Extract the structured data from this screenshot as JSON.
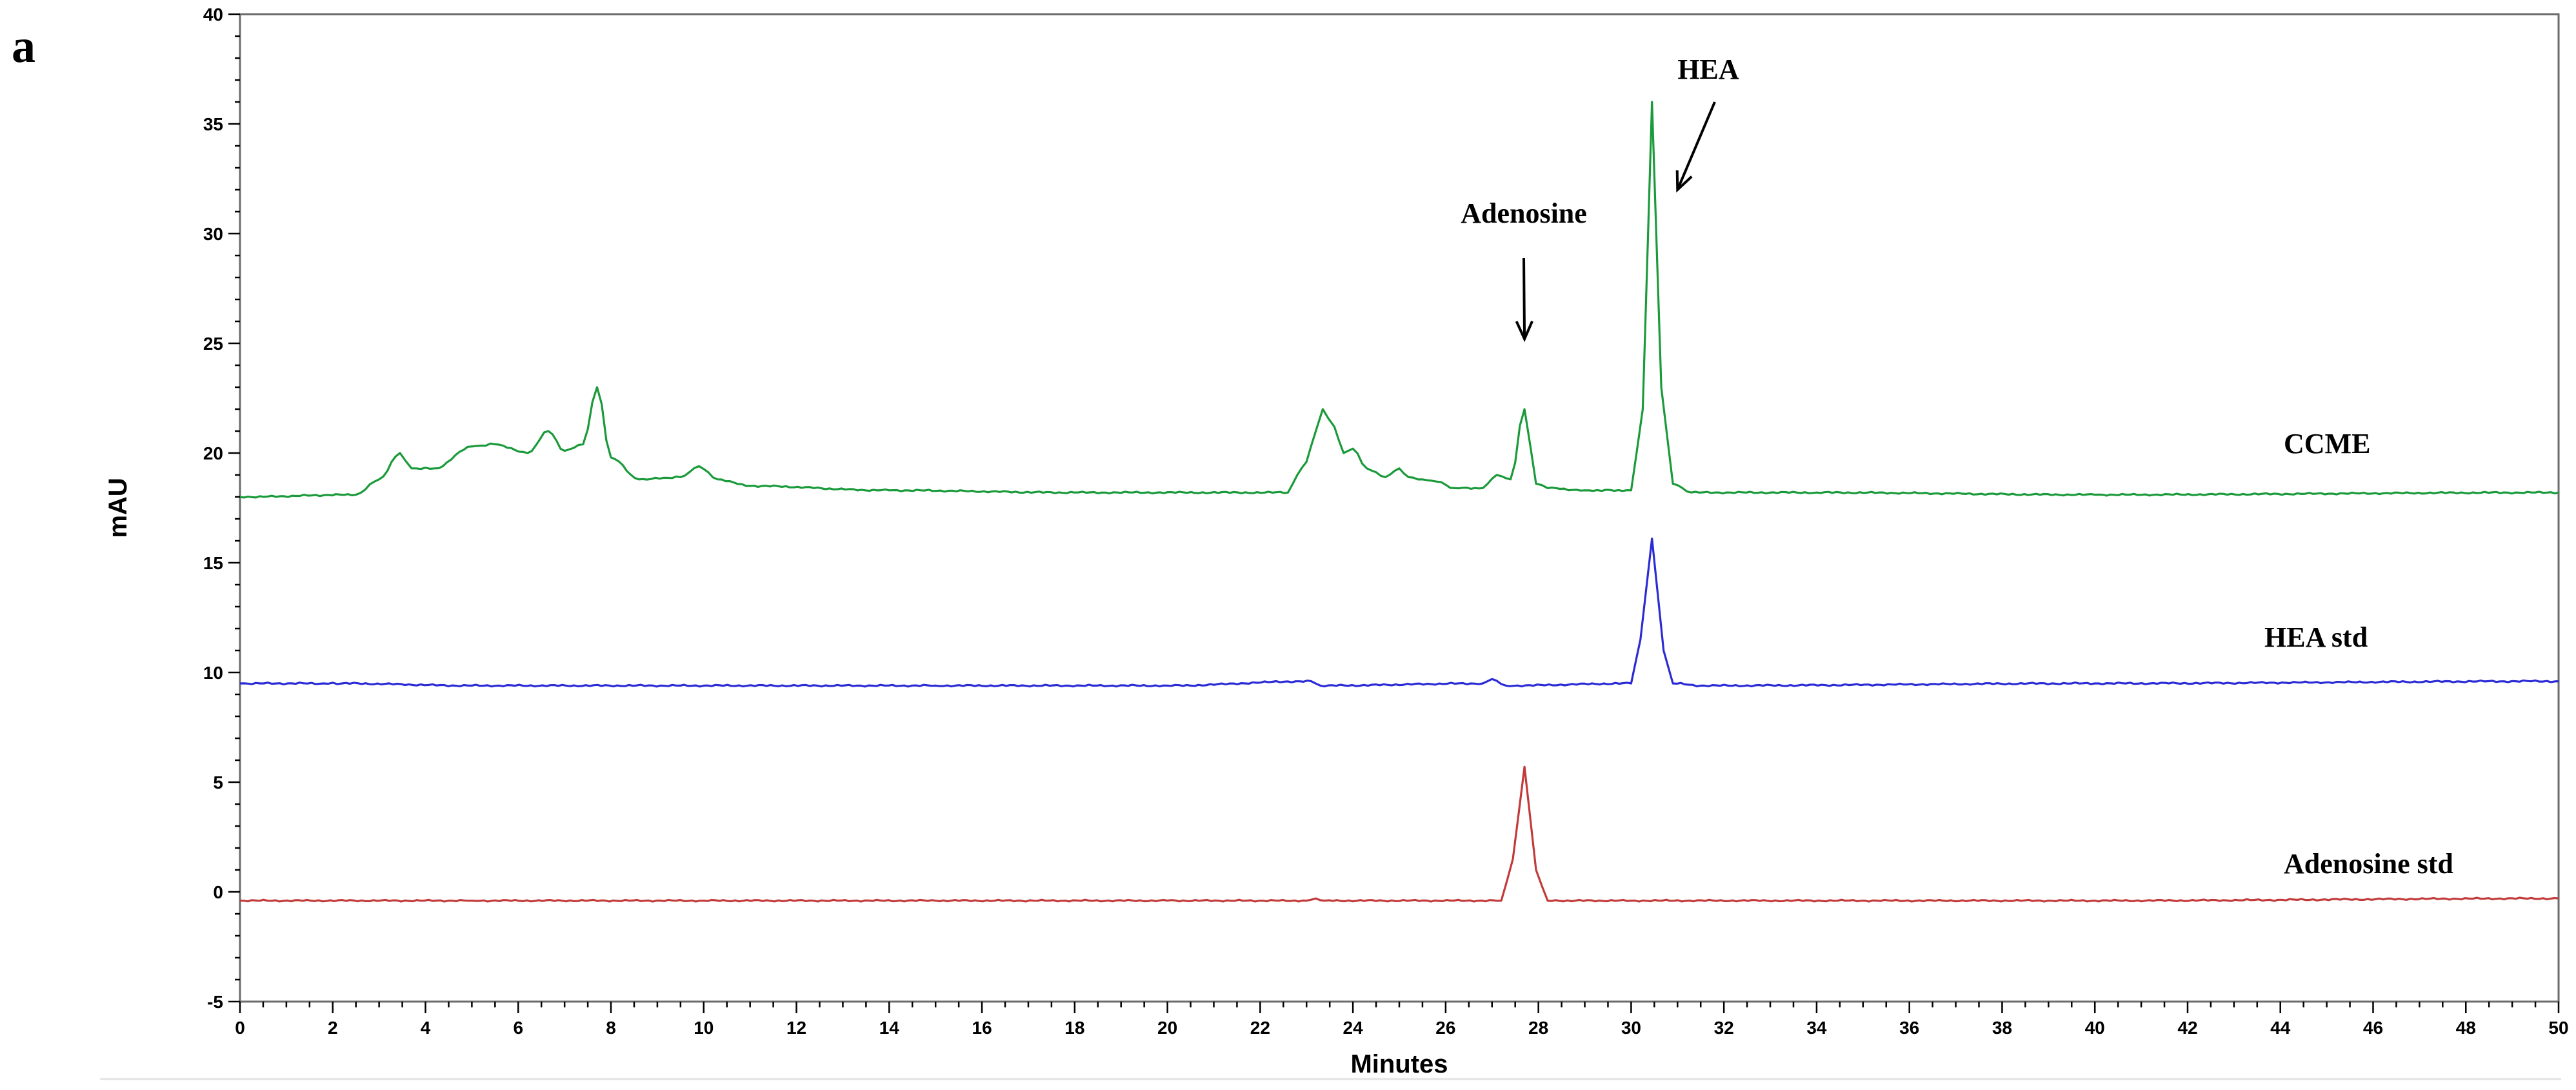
{
  "panel_label": "a",
  "chart_data": {
    "type": "line",
    "title": "",
    "xlabel": "Minutes",
    "ylabel": "mAU",
    "xlim": [
      0,
      50
    ],
    "ylim": [
      -5,
      40
    ],
    "x_ticks": [
      0,
      2,
      4,
      6,
      8,
      10,
      12,
      14,
      16,
      18,
      20,
      22,
      24,
      26,
      28,
      30,
      32,
      34,
      36,
      38,
      40,
      42,
      44,
      46,
      48,
      50
    ],
    "y_ticks": [
      -5,
      0,
      5,
      10,
      15,
      20,
      25,
      30,
      35,
      40
    ],
    "grid": false,
    "legend": "none",
    "series": [
      {
        "name": "CCME",
        "color": "#1a9a3a",
        "x": [
          0,
          2.5,
          3.0,
          3.45,
          3.7,
          4.2,
          5.0,
          5.5,
          6.2,
          6.65,
          7.0,
          7.4,
          7.7,
          8.0,
          8.6,
          9.5,
          9.9,
          10.3,
          11,
          14,
          18,
          22.6,
          22.8,
          23.0,
          23.2,
          23.35,
          23.6,
          23.8,
          24.0,
          24.3,
          24.7,
          25.0,
          25.2,
          25.5,
          25.8,
          26.2,
          26.8,
          27.1,
          27.4,
          27.7,
          27.95,
          28.2,
          29,
          30.0,
          30.25,
          30.45,
          30.65,
          30.9,
          31.3,
          34,
          40,
          50
        ],
        "values": [
          18.0,
          18.1,
          18.8,
          20.0,
          19.3,
          19.3,
          20.3,
          20.4,
          20.0,
          21.0,
          20.1,
          20.4,
          23.0,
          19.8,
          18.8,
          18.9,
          19.4,
          18.8,
          18.5,
          18.3,
          18.2,
          18.2,
          19.0,
          19.6,
          21.0,
          22.0,
          21.2,
          20.0,
          20.2,
          19.3,
          18.9,
          19.3,
          18.9,
          18.8,
          18.7,
          18.4,
          18.4,
          19.0,
          18.8,
          22.0,
          18.6,
          18.4,
          18.3,
          18.3,
          22.0,
          36.0,
          23.0,
          18.6,
          18.2,
          18.2,
          18.1,
          18.2
        ]
      },
      {
        "name": "HEA std",
        "color": "#2b2bd6",
        "x": [
          0,
          1.8,
          2.2,
          5,
          10,
          15,
          20,
          23.1,
          23.3,
          26.8,
          27.0,
          27.3,
          30.0,
          30.2,
          30.45,
          30.7,
          30.9,
          31.5,
          40,
          50
        ],
        "values": [
          9.5,
          9.5,
          9.5,
          9.4,
          9.4,
          9.4,
          9.4,
          9.6,
          9.4,
          9.5,
          9.7,
          9.4,
          9.5,
          11.5,
          16.1,
          11.0,
          9.5,
          9.4,
          9.5,
          9.6
        ]
      },
      {
        "name": "Adenosine std",
        "color": "#c23a3a",
        "x": [
          0,
          5,
          10,
          15,
          20,
          23.0,
          23.2,
          23.4,
          27.2,
          27.45,
          27.7,
          27.95,
          28.2,
          30,
          40,
          50
        ],
        "values": [
          -0.4,
          -0.4,
          -0.4,
          -0.4,
          -0.4,
          -0.4,
          -0.3,
          -0.4,
          -0.4,
          1.5,
          5.7,
          1.0,
          -0.4,
          -0.4,
          -0.4,
          -0.3
        ]
      }
    ],
    "annotations": [
      {
        "text": "Adenosine",
        "arrow_to": {
          "x": 27.7,
          "y": 25.2
        }
      },
      {
        "text": "HEA",
        "arrow_to": {
          "x": 31.0,
          "y": 32.0
        }
      },
      {
        "text": "CCME",
        "series": "CCME"
      },
      {
        "text": "HEA std",
        "series": "HEA std"
      },
      {
        "text": "Adenosine std",
        "series": "Adenosine std"
      }
    ]
  }
}
